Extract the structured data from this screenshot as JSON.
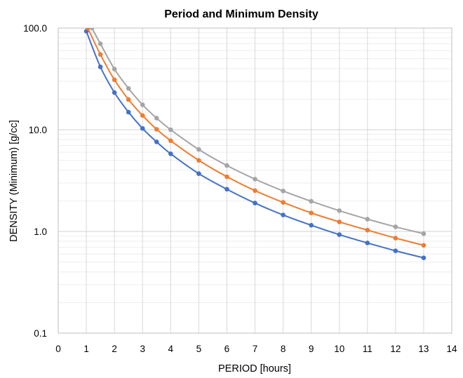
{
  "chart_data": {
    "type": "line",
    "title": "Period and Minimum Density",
    "xlabel": "PERIOD [hours]",
    "ylabel": "DENSITY (Minimum) [g/cc]",
    "xlim": [
      0,
      14
    ],
    "ylim": [
      0.1,
      100
    ],
    "yscale": "log",
    "grid": true,
    "legend": "none",
    "x_ticks": [
      "0",
      "1",
      "2",
      "3",
      "4",
      "5",
      "6",
      "7",
      "8",
      "9",
      "10",
      "11",
      "12",
      "13",
      "14"
    ],
    "y_ticks": [
      "0.1",
      "1.0",
      "10.0",
      "100.0"
    ],
    "series": [
      {
        "color": "#4472C4",
        "x": [
          1,
          1.5,
          2,
          2.5,
          3,
          3.5,
          4,
          5,
          6,
          7,
          8,
          9,
          10,
          11,
          12,
          13
        ],
        "y": [
          93,
          41.5,
          23.2,
          14.9,
          10.3,
          7.6,
          5.8,
          3.7,
          2.6,
          1.9,
          1.45,
          1.15,
          0.93,
          0.77,
          0.645,
          0.55
        ]
      },
      {
        "color": "#ED7D31",
        "x": [
          1.05,
          1.5,
          2,
          2.5,
          3,
          3.5,
          4,
          5,
          6,
          7,
          8,
          9,
          10,
          11,
          12,
          13
        ],
        "y": [
          100,
          55,
          31,
          19.8,
          13.8,
          10.1,
          7.8,
          5.0,
          3.45,
          2.52,
          1.93,
          1.52,
          1.24,
          1.03,
          0.86,
          0.73
        ]
      },
      {
        "color": "#A5A5A5",
        "x": [
          1.2,
          1.5,
          2,
          2.5,
          3,
          3.5,
          4,
          5,
          6,
          7,
          8,
          9,
          10,
          11,
          12,
          13
        ],
        "y": [
          100,
          70,
          39.5,
          25.5,
          17.6,
          13,
          10,
          6.4,
          4.45,
          3.27,
          2.5,
          1.98,
          1.6,
          1.32,
          1.11,
          0.95
        ]
      }
    ]
  }
}
